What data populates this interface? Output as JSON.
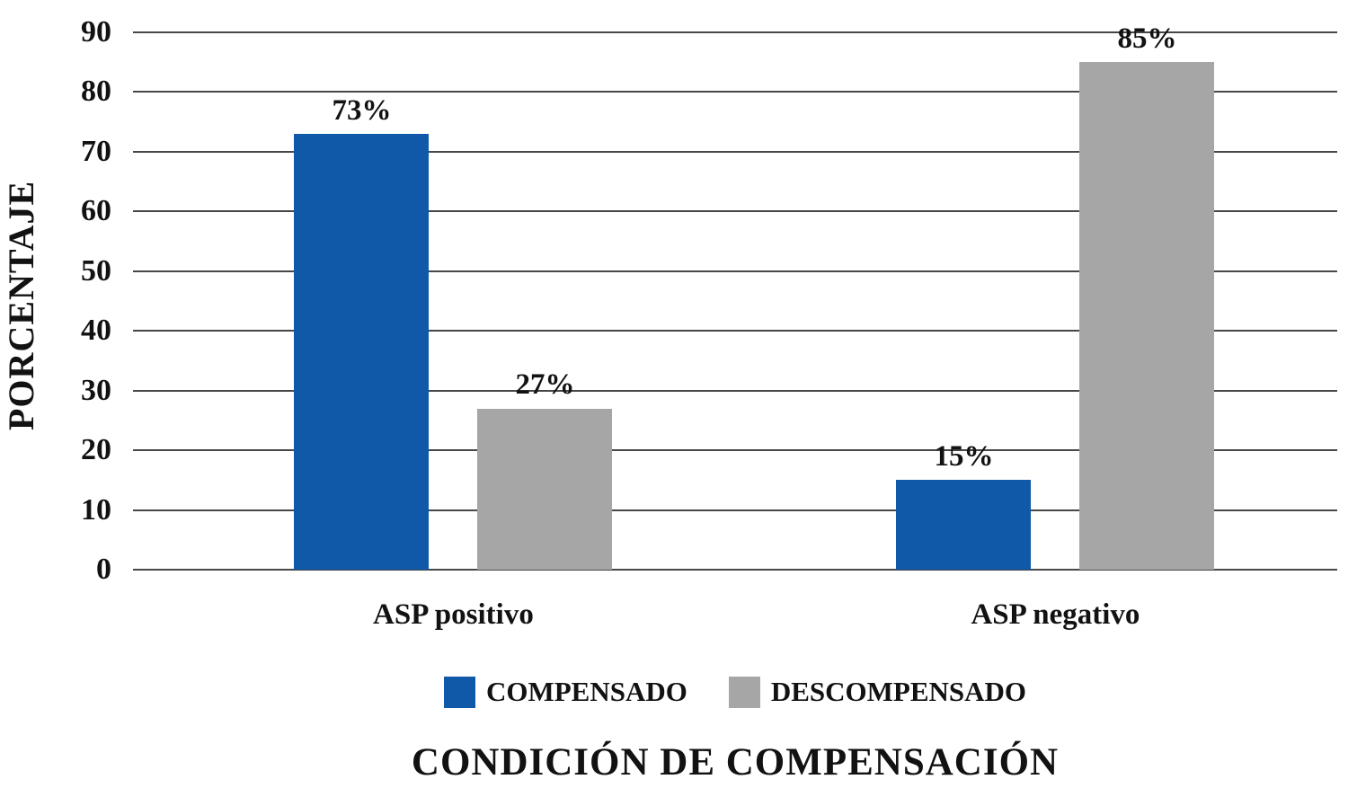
{
  "chart_data": {
    "type": "bar",
    "categories": [
      "ASP positivo",
      "ASP negativo"
    ],
    "series": [
      {
        "name": "COMPENSADO",
        "color": "#1058A8",
        "values": [
          73,
          15
        ]
      },
      {
        "name": "DESCOMPENSADO",
        "color": "#A6A6A6",
        "values": [
          27,
          85
        ]
      }
    ],
    "data_labels": [
      [
        "73%",
        "27%"
      ],
      [
        "15%",
        "85%"
      ]
    ],
    "xlabel": "CONDICIÓN DE COMPENSACIÓN",
    "ylabel": "PORCENTAJE",
    "ylim": [
      0,
      90
    ],
    "yticks": [
      0,
      10,
      20,
      30,
      40,
      50,
      60,
      70,
      80,
      90
    ],
    "grid": true,
    "legend_position": "bottom"
  }
}
